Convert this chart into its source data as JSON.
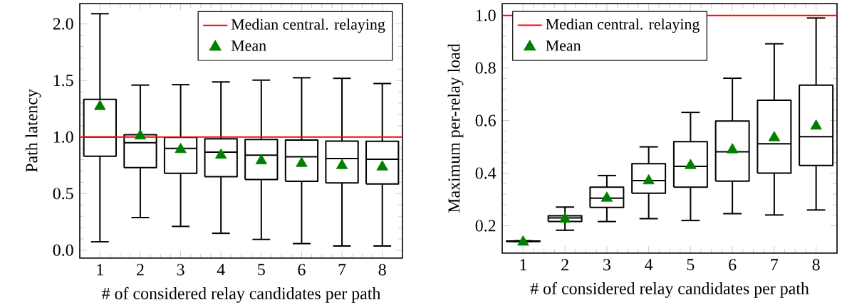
{
  "chart_data": [
    {
      "type": "box",
      "xlabel": "# of considered relay candidates per path",
      "ylabel": "Path latency",
      "categories": [
        "1",
        "2",
        "3",
        "4",
        "5",
        "6",
        "7",
        "8"
      ],
      "boxes": [
        {
          "low": 0.074,
          "q1": 0.83,
          "median": 1.0,
          "q3": 1.333,
          "high": 2.09
        },
        {
          "low": 0.288,
          "q1": 0.73,
          "median": 0.95,
          "q3": 1.02,
          "high": 1.459
        },
        {
          "low": 0.21,
          "q1": 0.68,
          "median": 0.9,
          "q3": 0.997,
          "high": 1.463
        },
        {
          "low": 0.149,
          "q1": 0.65,
          "median": 0.866,
          "q3": 0.985,
          "high": 1.487
        },
        {
          "low": 0.095,
          "q1": 0.625,
          "median": 0.84,
          "q3": 0.978,
          "high": 1.503
        },
        {
          "low": 0.058,
          "q1": 0.609,
          "median": 0.825,
          "q3": 0.973,
          "high": 1.524
        },
        {
          "low": 0.037,
          "q1": 0.595,
          "median": 0.81,
          "q3": 0.964,
          "high": 1.519
        },
        {
          "low": 0.037,
          "q1": 0.585,
          "median": 0.804,
          "q3": 0.962,
          "high": 1.473
        }
      ],
      "series": [
        {
          "name": "Mean",
          "type": "scatter",
          "color": "#008000",
          "marker": "triangle",
          "x": [
            "1",
            "2",
            "3",
            "4",
            "5",
            "6",
            "7",
            "8"
          ],
          "values": [
            1.27,
            1.01,
            0.89,
            0.84,
            0.79,
            0.767,
            0.748,
            0.736
          ]
        }
      ],
      "ref_lines": [
        {
          "axis": "y",
          "value": 1.0,
          "label": "Median central. relaying",
          "color": "#ff0000"
        }
      ],
      "ylim": [
        -0.07,
        2.18
      ],
      "yticks": [
        {
          "value": 0,
          "label": "0.0"
        },
        {
          "value": 0.5,
          "label": "0.5"
        },
        {
          "value": 1,
          "label": "1.0"
        },
        {
          "value": 1.5,
          "label": "1.5"
        },
        {
          "value": 2,
          "label": "2.0"
        }
      ],
      "legend": "top right"
    },
    {
      "type": "box",
      "xlabel": "# of considered relay candidates per path",
      "ylabel": "Maximum per-relay load",
      "categories": [
        "1",
        "2",
        "3",
        "4",
        "5",
        "6",
        "7",
        "8"
      ],
      "boxes": [
        {
          "low": 0.14,
          "q1": 0.14,
          "median": 0.141,
          "q3": 0.142,
          "high": 0.143
        },
        {
          "low": 0.183,
          "q1": 0.216,
          "median": 0.23,
          "q3": 0.238,
          "high": 0.271
        },
        {
          "low": 0.216,
          "q1": 0.27,
          "median": 0.305,
          "q3": 0.347,
          "high": 0.391
        },
        {
          "low": 0.227,
          "q1": 0.324,
          "median": 0.372,
          "q3": 0.436,
          "high": 0.5
        },
        {
          "low": 0.22,
          "q1": 0.347,
          "median": 0.426,
          "q3": 0.52,
          "high": 0.631
        },
        {
          "low": 0.246,
          "q1": 0.37,
          "median": 0.481,
          "q3": 0.598,
          "high": 0.761
        },
        {
          "low": 0.241,
          "q1": 0.4,
          "median": 0.512,
          "q3": 0.677,
          "high": 0.892
        },
        {
          "low": 0.26,
          "q1": 0.429,
          "median": 0.539,
          "q3": 0.735,
          "high": 0.99
        }
      ],
      "series": [
        {
          "name": "Mean",
          "type": "scatter",
          "color": "#008000",
          "marker": "triangle",
          "x": [
            "1",
            "2",
            "3",
            "4",
            "5",
            "6",
            "7",
            "8"
          ],
          "values": [
            0.138,
            0.225,
            0.305,
            0.371,
            0.429,
            0.489,
            0.535,
            0.579
          ]
        }
      ],
      "ref_lines": [
        {
          "axis": "y",
          "value": 1.0,
          "label": "Median central. relaying",
          "color": "#ff0000"
        }
      ],
      "ylim": [
        0.096,
        1.045
      ],
      "yticks": [
        {
          "value": 0.2,
          "label": "0.2"
        },
        {
          "value": 0.4,
          "label": "0.4"
        },
        {
          "value": 0.6,
          "label": "0.6"
        },
        {
          "value": 0.8,
          "label": "0.8"
        },
        {
          "value": 1.0,
          "label": "1.0"
        }
      ],
      "legend": "top left"
    }
  ]
}
